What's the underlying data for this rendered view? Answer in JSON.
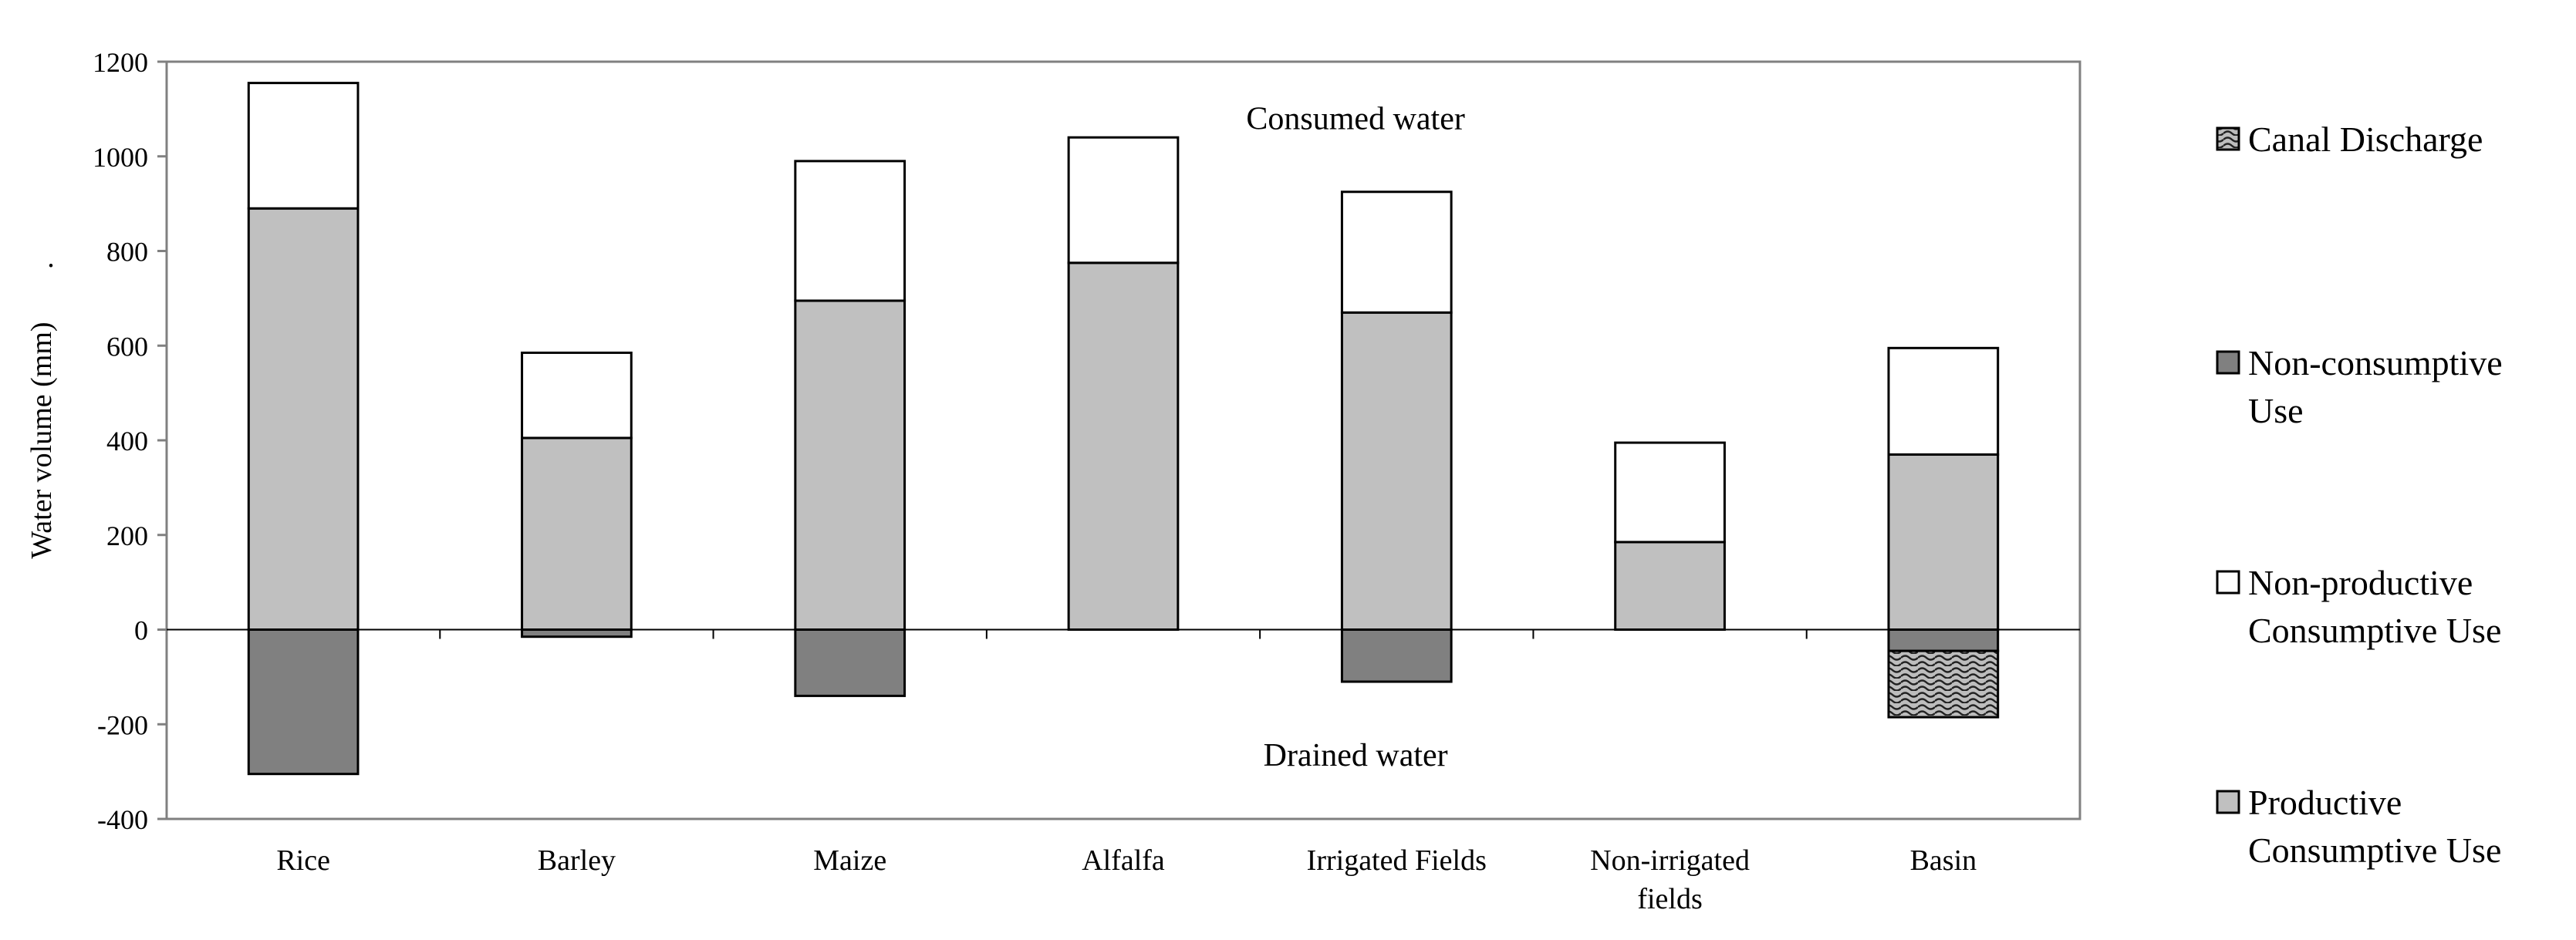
{
  "chart_data": {
    "type": "bar",
    "stacked": true,
    "title": "",
    "xlabel": "",
    "ylabel": "Water volume (mm)",
    "ylabel_suffix": ".",
    "ylim": [
      -400,
      1200
    ],
    "yticks": [
      -400,
      -200,
      0,
      200,
      400,
      600,
      800,
      1000,
      1200
    ],
    "grid": false,
    "legend_position": "right",
    "categories": [
      "Rice",
      "Barley",
      "Maize",
      "Alfalfa",
      "Irrigated Fields",
      "Non-irrigated fields",
      "Basin"
    ],
    "category_lines": [
      [
        "Rice"
      ],
      [
        "Barley"
      ],
      [
        "Maize"
      ],
      [
        "Alfalfa"
      ],
      [
        "Irrigated Fields"
      ],
      [
        "Non-irrigated",
        "fields"
      ],
      [
        "Basin"
      ]
    ],
    "series": [
      {
        "name": "Productive Consumptive Use",
        "legend_lines": [
          "Productive",
          "Consumptive Use"
        ],
        "fill": "#c0c0c0",
        "pattern": "none",
        "values": [
          890,
          405,
          695,
          775,
          670,
          185,
          370
        ]
      },
      {
        "name": "Non-productive Consumptive Use",
        "legend_lines": [
          "Non-productive",
          "Consumptive Use"
        ],
        "fill": "#ffffff",
        "pattern": "none",
        "values": [
          265,
          180,
          295,
          265,
          255,
          210,
          225
        ]
      },
      {
        "name": "Non-consumptive Use",
        "legend_lines": [
          "Non-consumptive",
          "Use"
        ],
        "fill": "#808080",
        "pattern": "none",
        "values": [
          -305,
          -15,
          -140,
          0,
          -110,
          0,
          -45
        ]
      },
      {
        "name": "Canal Discharge",
        "legend_lines": [
          "Canal Discharge"
        ],
        "fill": "#808080",
        "pattern": "wave",
        "values": [
          0,
          0,
          0,
          0,
          0,
          0,
          -140
        ]
      }
    ],
    "legend_order": [
      "Canal Discharge",
      "Non-consumptive Use",
      "Non-productive Consumptive Use",
      "Productive Consumptive Use"
    ],
    "annotations": [
      {
        "text": "Consumed water",
        "x_category": 4.5,
        "y": 1080
      },
      {
        "text": "Drained water",
        "x_category": 4.5,
        "y": -265
      }
    ]
  }
}
